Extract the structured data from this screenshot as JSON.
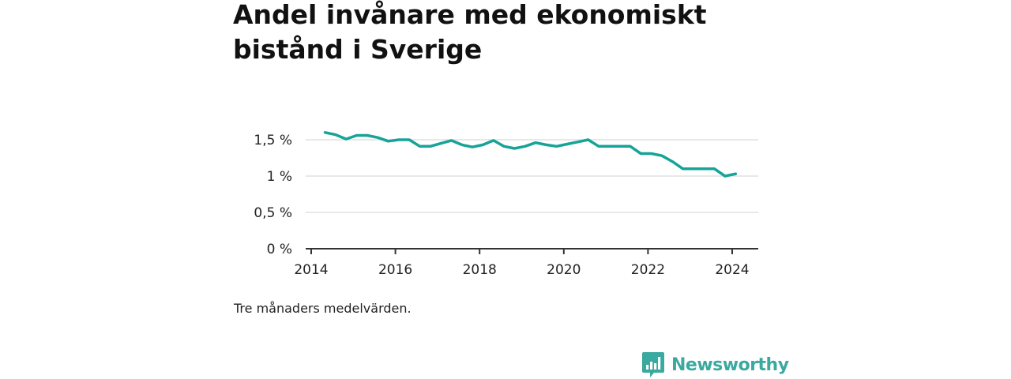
{
  "chart_data": {
    "type": "line",
    "title": "Andel invånare med ekonomiskt bistånd i Sverige",
    "caption": "Tre månaders medelvärden.",
    "xlabel": "",
    "ylabel": "",
    "xlim": [
      2014,
      2024.6
    ],
    "ylim": [
      0,
      1.5
    ],
    "x_ticks": [
      2014,
      2016,
      2018,
      2020,
      2022,
      2024
    ],
    "x_tick_labels": [
      "2014",
      "2016",
      "2018",
      "2020",
      "2022",
      "2024"
    ],
    "y_ticks": [
      0,
      0.5,
      1,
      1.5
    ],
    "y_tick_labels": [
      "0 %",
      "0,5 %",
      "1 %",
      "1,5 %"
    ],
    "grid": true,
    "line_color": "#17a398",
    "series": [
      {
        "x": [
          2014.33,
          2014.58,
          2014.83,
          2015.08,
          2015.33,
          2015.58,
          2015.83,
          2016.08,
          2016.33,
          2016.58,
          2016.83,
          2017.08,
          2017.33,
          2017.58,
          2017.83,
          2018.08,
          2018.33,
          2018.58,
          2018.83,
          2019.08,
          2019.33,
          2019.58,
          2019.83,
          2020.08,
          2020.33,
          2020.58,
          2020.83,
          2021.08,
          2021.33,
          2021.58,
          2021.83,
          2022.08,
          2022.33,
          2022.58,
          2022.83,
          2023.08,
          2023.33,
          2023.58,
          2023.83,
          2024.08
        ],
        "values": [
          1.6,
          1.57,
          1.51,
          1.56,
          1.56,
          1.53,
          1.48,
          1.5,
          1.5,
          1.41,
          1.41,
          1.45,
          1.49,
          1.43,
          1.4,
          1.43,
          1.49,
          1.41,
          1.38,
          1.41,
          1.46,
          1.43,
          1.41,
          1.44,
          1.47,
          1.5,
          1.41,
          1.41,
          1.41,
          1.41,
          1.31,
          1.31,
          1.28,
          1.2,
          1.1,
          1.1,
          1.1,
          1.1,
          1.0,
          1.03
        ]
      }
    ]
  },
  "brand": {
    "name": "Newsworthy",
    "color": "#3aa99f",
    "icon": "bar-chart-speech-bubble-icon"
  }
}
